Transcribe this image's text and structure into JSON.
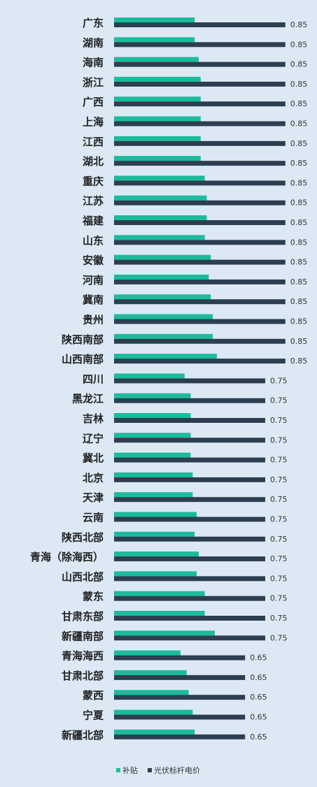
{
  "chart_data": {
    "type": "bar",
    "orientation": "horizontal",
    "categories": [
      "广东",
      "湖南",
      "海南",
      "浙江",
      "广西",
      "上海",
      "江西",
      "湖北",
      "重庆",
      "江苏",
      "福建",
      "山东",
      "安徽",
      "河南",
      "冀南",
      "贵州",
      "陕西南部",
      "山西南部",
      "四川",
      "黑龙江",
      "吉林",
      "辽宁",
      "冀北",
      "北京",
      "天津",
      "云南",
      "陕西北部",
      "青海（除海西）",
      "山西北部",
      "蒙东",
      "甘肃东部",
      "新疆南部",
      "青海海西",
      "甘肃北部",
      "蒙西",
      "宁夏",
      "新疆北部"
    ],
    "series": [
      {
        "name": "补贴",
        "color": "#1abc9c",
        "values": [
          0.4,
          0.4,
          0.42,
          0.43,
          0.43,
          0.43,
          0.43,
          0.43,
          0.45,
          0.46,
          0.46,
          0.45,
          0.48,
          0.47,
          0.48,
          0.49,
          0.49,
          0.51,
          0.35,
          0.38,
          0.38,
          0.38,
          0.38,
          0.39,
          0.39,
          0.41,
          0.4,
          0.42,
          0.41,
          0.45,
          0.45,
          0.5,
          0.33,
          0.36,
          0.37,
          0.39,
          0.4
        ]
      },
      {
        "name": "光伏标杆电价",
        "color": "#2c3e50",
        "values": [
          0.85,
          0.85,
          0.85,
          0.85,
          0.85,
          0.85,
          0.85,
          0.85,
          0.85,
          0.85,
          0.85,
          0.85,
          0.85,
          0.85,
          0.85,
          0.85,
          0.85,
          0.85,
          0.75,
          0.75,
          0.75,
          0.75,
          0.75,
          0.75,
          0.75,
          0.75,
          0.75,
          0.75,
          0.75,
          0.75,
          0.75,
          0.75,
          0.65,
          0.65,
          0.65,
          0.65,
          0.65
        ]
      }
    ],
    "value_labels": [
      "0.85",
      "0.85",
      "0.85",
      "0.85",
      "0.85",
      "0.85",
      "0.85",
      "0.85",
      "0.85",
      "0.85",
      "0.85",
      "0.85",
      "0.85",
      "0.85",
      "0.85",
      "0.85",
      "0.85",
      "0.85",
      "0.75",
      "0.75",
      "0.75",
      "0.75",
      "0.75",
      "0.75",
      "0.75",
      "0.75",
      "0.75",
      "0.75",
      "0.75",
      "0.75",
      "0.75",
      "0.75",
      "0.65",
      "0.65",
      "0.65",
      "0.65",
      "0.65"
    ],
    "xlim": [
      0,
      0.85
    ],
    "grid": false,
    "legend_position": "bottom"
  }
}
